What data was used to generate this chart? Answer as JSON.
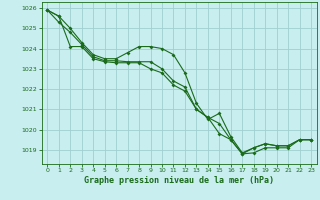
{
  "title": "Graphe pression niveau de la mer (hPa)",
  "bg_color": "#c8eef0",
  "line_color": "#1a6b1a",
  "grid_color": "#a0d0d0",
  "text_color": "#1a6b1a",
  "ylim": [
    1018.3,
    1026.3
  ],
  "xlim": [
    -0.5,
    23.5
  ],
  "yticks": [
    1019,
    1020,
    1021,
    1022,
    1023,
    1024,
    1025,
    1026
  ],
  "xticks": [
    0,
    1,
    2,
    3,
    4,
    5,
    6,
    7,
    8,
    9,
    10,
    11,
    12,
    13,
    14,
    15,
    16,
    17,
    18,
    19,
    20,
    21,
    22,
    23
  ],
  "series": [
    {
      "x": [
        0,
        1,
        2,
        3,
        4,
        5,
        6,
        7,
        8,
        9,
        10,
        11,
        12,
        13,
        14,
        15,
        16,
        17,
        18,
        19,
        20,
        21,
        22,
        23
      ],
      "y": [
        1025.9,
        1025.6,
        1025.0,
        1024.3,
        1023.7,
        1023.5,
        1023.5,
        1023.8,
        1024.1,
        1024.1,
        1024.0,
        1023.7,
        1022.8,
        1021.3,
        1020.5,
        1020.8,
        1019.65,
        1018.85,
        1019.1,
        1019.3,
        1019.2,
        1019.2,
        1019.5,
        1019.5
      ]
    },
    {
      "x": [
        0,
        1,
        2,
        3,
        4,
        5,
        6,
        7,
        8,
        9,
        10,
        11,
        12,
        13,
        14,
        15,
        16,
        17,
        18,
        19,
        20,
        21,
        22,
        23
      ],
      "y": [
        1025.9,
        1025.3,
        1024.8,
        1024.2,
        1023.6,
        1023.4,
        1023.4,
        1023.35,
        1023.35,
        1023.35,
        1023.0,
        1022.4,
        1022.1,
        1021.0,
        1020.6,
        1020.3,
        1019.5,
        1018.8,
        1019.1,
        1019.3,
        1019.2,
        1019.2,
        1019.5,
        1019.5
      ]
    },
    {
      "x": [
        0,
        1,
        2,
        3,
        4,
        5,
        6,
        7,
        8,
        9,
        10,
        11,
        12,
        13,
        14,
        15,
        16,
        17,
        18,
        19,
        20,
        21,
        22,
        23
      ],
      "y": [
        1025.9,
        1025.6,
        1024.1,
        1024.1,
        1023.5,
        1023.35,
        1023.3,
        1023.3,
        1023.3,
        1023.0,
        1022.8,
        1022.2,
        1021.9,
        1021.0,
        1020.6,
        1019.8,
        1019.5,
        1018.8,
        1018.85,
        1019.1,
        1019.1,
        1019.1,
        1019.5,
        1019.5
      ]
    }
  ]
}
